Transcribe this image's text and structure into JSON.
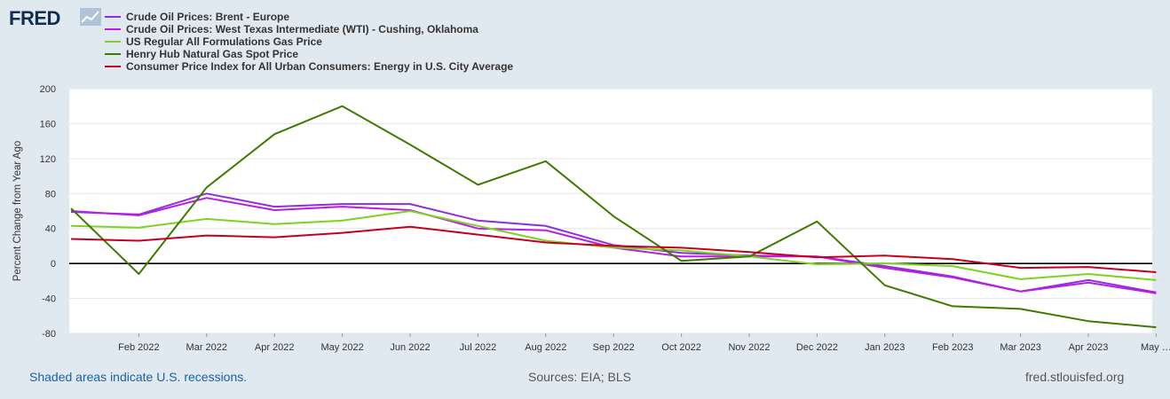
{
  "logo": {
    "text": "FRED",
    "icon": "chart-line-icon"
  },
  "footer": {
    "recessions": "Shaded areas indicate U.S. recessions.",
    "sources": "Sources: EIA; BLS",
    "site": "fred.stlouisfed.org"
  },
  "chart_data": {
    "type": "line",
    "title": "",
    "xlabel": "",
    "ylabel": "Percent Change from Year Ago",
    "ylim": [
      -80,
      200
    ],
    "yticks": [
      200,
      160,
      120,
      80,
      40,
      0,
      -40,
      -80
    ],
    "x_tick_labels": [
      "Feb 2022",
      "Mar 2022",
      "Apr 2022",
      "May 2022",
      "Jun 2022",
      "Jul 2022",
      "Aug 2022",
      "Sep 2022",
      "Oct 2022",
      "Nov 2022",
      "Dec 2022",
      "Jan 2023",
      "Feb 2023",
      "Mar 2023",
      "Apr 2023",
      "May …"
    ],
    "x": [
      "Jan 2022",
      "Feb 2022",
      "Mar 2022",
      "Apr 2022",
      "May 2022",
      "Jun 2022",
      "Jul 2022",
      "Aug 2022",
      "Sep 2022",
      "Oct 2022",
      "Nov 2022",
      "Dec 2022",
      "Jan 2023",
      "Feb 2023",
      "Mar 2023",
      "Apr 2023",
      "May 2023"
    ],
    "grid": true,
    "zero_line": true,
    "legend_position": "top-left",
    "series": [
      {
        "name": "Crude Oil Prices: Brent - Europe",
        "color": "#8e2ee0",
        "values": [
          59,
          56,
          80,
          65,
          68,
          68,
          49,
          43,
          21,
          12,
          9,
          8,
          -3,
          -15,
          -32,
          -19,
          -33
        ]
      },
      {
        "name": "Crude Oil Prices: West Texas Intermediate (WTI) - Cushing, Oklahoma",
        "color": "#b81de0",
        "values": [
          60,
          55,
          75,
          61,
          65,
          61,
          40,
          38,
          18,
          8,
          8,
          8,
          -5,
          -16,
          -32,
          -22,
          -34
        ]
      },
      {
        "name": "US Regular All Formulations Gas Price",
        "color": "#7ed321",
        "values": [
          43,
          41,
          51,
          45,
          49,
          60,
          43,
          26,
          18,
          15,
          8,
          -1,
          0,
          -3,
          -18,
          -12,
          -19
        ]
      },
      {
        "name": "Henry Hub Natural Gas Spot Price",
        "color": "#3f7a00",
        "values": [
          63,
          -12,
          87,
          148,
          180,
          136,
          90,
          117,
          54,
          3,
          8,
          48,
          -25,
          -49,
          -52,
          -66,
          -73
        ]
      },
      {
        "name": "Consumer Price Index for All Urban Consumers: Energy in U.S. City Average",
        "color": "#c4001f",
        "values": [
          28,
          26,
          32,
          30,
          35,
          42,
          33,
          24,
          20,
          18,
          13,
          7,
          9,
          5,
          -5,
          -4,
          -10
        ]
      }
    ]
  }
}
